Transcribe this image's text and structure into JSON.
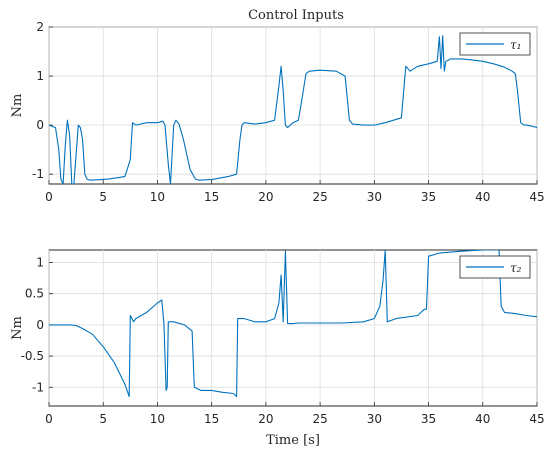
{
  "title": "Control Inputs",
  "chart_data": [
    {
      "type": "line",
      "ylabel": "Nm",
      "xlabel": "",
      "xlim": [
        0,
        45
      ],
      "ylim": [
        -1.2,
        2.0
      ],
      "xticks": [
        0,
        5,
        10,
        15,
        20,
        25,
        30,
        35,
        40,
        45
      ],
      "yticks": [
        -1,
        0,
        1,
        2
      ],
      "grid": true,
      "legend_position": "top-right",
      "series": [
        {
          "name": "τ₁",
          "color": "#0072BD",
          "x": [
            0,
            0.6,
            0.9,
            1.1,
            1.3,
            1.5,
            1.7,
            1.9,
            2.1,
            2.3,
            2.5,
            2.7,
            2.9,
            3.1,
            3.3,
            3.5,
            3.7,
            4.0,
            5.5,
            7.0,
            7.5,
            7.7,
            8.0,
            9.0,
            10.0,
            10.5,
            10.7,
            11.0,
            11.2,
            11.5,
            11.7,
            12.0,
            12.4,
            13.0,
            13.5,
            13.8,
            14.0,
            15.0,
            16.5,
            17.3,
            17.6,
            17.8,
            18.0,
            19.0,
            20.0,
            20.8,
            21.2,
            21.4,
            21.6,
            21.8,
            22.0,
            22.5,
            23.0,
            23.3,
            23.7,
            24.0,
            25.0,
            26.5,
            27.3,
            27.7,
            28.0,
            29.0,
            30.0,
            31.0,
            32.5,
            32.9,
            33.1,
            33.3,
            34.0,
            35.0,
            35.8,
            36.0,
            36.15,
            36.3,
            36.45,
            36.6,
            36.8,
            37.0,
            38.0,
            39.0,
            40.0,
            41.0,
            42.0,
            42.7,
            43.0,
            43.2,
            43.5,
            43.8,
            44.0,
            44.5,
            45.0
          ],
          "y": [
            0.0,
            -0.05,
            -0.5,
            -1.1,
            -1.2,
            -0.4,
            0.1,
            -0.2,
            -1.2,
            -1.2,
            -0.6,
            0.0,
            -0.05,
            -0.3,
            -1.0,
            -1.1,
            -1.12,
            -1.12,
            -1.1,
            -1.05,
            -0.7,
            0.05,
            0.0,
            0.05,
            0.05,
            0.08,
            0.0,
            -0.8,
            -1.2,
            0.0,
            0.1,
            0.02,
            -0.3,
            -0.9,
            -1.1,
            -1.12,
            -1.12,
            -1.11,
            -1.05,
            -1.0,
            -0.3,
            0.0,
            0.05,
            0.02,
            0.05,
            0.1,
            0.8,
            1.2,
            0.7,
            0.0,
            -0.05,
            0.05,
            0.1,
            0.5,
            1.05,
            1.1,
            1.12,
            1.1,
            1.0,
            0.1,
            0.02,
            0.0,
            0.0,
            0.05,
            0.15,
            1.2,
            1.15,
            1.1,
            1.2,
            1.25,
            1.3,
            1.8,
            1.15,
            1.82,
            1.1,
            1.3,
            1.32,
            1.35,
            1.35,
            1.33,
            1.3,
            1.25,
            1.18,
            1.1,
            1.05,
            0.7,
            0.05,
            0.0,
            0.0,
            -0.02,
            -0.05
          ]
        }
      ]
    },
    {
      "type": "line",
      "ylabel": "Nm",
      "xlabel": "Time [s]",
      "xlim": [
        0,
        45
      ],
      "ylim": [
        -1.3,
        1.2
      ],
      "xticks": [
        0,
        5,
        10,
        15,
        20,
        25,
        30,
        35,
        40,
        45
      ],
      "yticks": [
        -1,
        -0.5,
        0,
        0.5,
        1
      ],
      "grid": true,
      "legend_position": "top-right",
      "series": [
        {
          "name": "τ₂",
          "color": "#0072BD",
          "x": [
            0,
            1.0,
            2.0,
            2.5,
            3.0,
            4.0,
            5.0,
            6.0,
            7.0,
            7.4,
            7.5,
            7.6,
            7.8,
            8.0,
            9.0,
            10.0,
            10.4,
            10.6,
            10.8,
            10.9,
            11.0,
            11.5,
            12.5,
            13.2,
            13.4,
            14.0,
            15.0,
            16.0,
            17.0,
            17.3,
            17.4,
            17.6,
            18.0,
            19.0,
            20.0,
            20.8,
            21.2,
            21.4,
            21.6,
            21.8,
            22.0,
            22.5,
            23.0,
            25.0,
            27.0,
            29.0,
            30.0,
            30.5,
            30.8,
            31.0,
            31.2,
            32.0,
            34.0,
            34.6,
            34.8,
            35.0,
            36.0,
            38.0,
            40.0,
            41.0,
            41.5,
            41.7,
            42.0,
            43.0,
            44.0,
            45.0
          ],
          "y": [
            0.0,
            0.0,
            0.0,
            -0.01,
            -0.05,
            -0.15,
            -0.35,
            -0.6,
            -0.95,
            -1.15,
            0.15,
            0.12,
            0.05,
            0.1,
            0.2,
            0.35,
            0.4,
            0.0,
            -1.05,
            -1.0,
            0.05,
            0.05,
            0.0,
            -0.1,
            -1.0,
            -1.05,
            -1.05,
            -1.08,
            -1.1,
            -1.15,
            0.1,
            0.1,
            0.1,
            0.05,
            0.05,
            0.1,
            0.35,
            0.8,
            0.05,
            1.18,
            0.02,
            0.02,
            0.03,
            0.03,
            0.03,
            0.05,
            0.1,
            0.3,
            0.7,
            1.2,
            0.05,
            0.1,
            0.15,
            0.25,
            0.25,
            1.1,
            1.15,
            1.18,
            1.2,
            1.2,
            1.2,
            0.3,
            0.2,
            0.18,
            0.15,
            0.13
          ]
        }
      ]
    }
  ]
}
